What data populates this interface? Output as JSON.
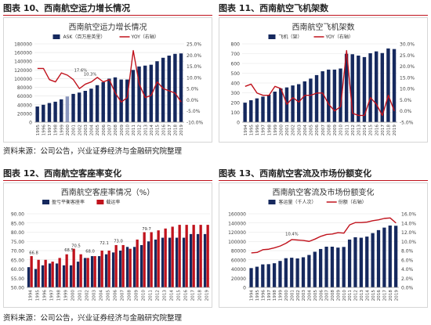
{
  "source_note": "资料来源：公司公告，兴业证券经济与金融研究院整理",
  "colors": {
    "bar": "#16295e",
    "line": "#c0121c",
    "bar_red": "#c0121c",
    "rule": "#c0121c"
  },
  "panels": {
    "p10": {
      "figure_label": "图表 10、西南航空运力增长情况"
    },
    "p11": {
      "figure_label": "图表 11、西南航空飞机架数"
    },
    "p12": {
      "figure_label": "图表 12、西南航空客座率变化"
    },
    "p13": {
      "figure_label": "图表 13、西南航空客流及市场份额变化"
    }
  },
  "chart_data": [
    {
      "type": "bar",
      "title": "西南航空运力增长情况",
      "categories": [
        "1995",
        "1996",
        "1997",
        "1998",
        "1999",
        "2000",
        "2001",
        "2002",
        "2003",
        "2004",
        "2005",
        "2006",
        "2007",
        "2008",
        "2009",
        "2010",
        "2011",
        "2012",
        "2013",
        "2014",
        "2015",
        "2016",
        "2017",
        "2018",
        "2019"
      ],
      "series": [
        {
          "name": "ASK（百万座英里）",
          "kind": "bar",
          "axis": "left",
          "values": [
            36000,
            40000,
            44000,
            47000,
            52500,
            59000,
            65000,
            68000,
            72000,
            77000,
            85000,
            92000,
            100000,
            103000,
            98000,
            98000,
            120000,
            128000,
            130000,
            132000,
            140000,
            148000,
            153000,
            157000,
            158000
          ]
        },
        {
          "name": "YOY（右轴）",
          "kind": "line",
          "axis": "right",
          "values": [
            14,
            14,
            9,
            8,
            12,
            11,
            9,
            5,
            7,
            8,
            10,
            8,
            9,
            3,
            -1,
            1,
            22,
            7,
            1,
            2,
            8,
            5,
            4,
            3,
            -1
          ]
        }
      ],
      "ylim": [
        0,
        180000
      ],
      "yticks": [
        "0",
        "20000",
        "40000",
        "60000",
        "80000",
        "100000",
        "120000",
        "140000",
        "160000",
        "180000"
      ],
      "y2lim": [
        -10,
        25
      ],
      "y2ticks": [
        "-10.0%",
        "-5.0%",
        "0.0%",
        "5.0%",
        "10.0%",
        "15.0%",
        "20.0%",
        "25.0%"
      ],
      "legend_position": "top-right",
      "highlight_bar": 5,
      "annotations": [
        {
          "text": "17.6%",
          "x_index": 7.2,
          "y2": 12.5
        },
        {
          "text": "10.3%",
          "x_index": 8.8,
          "y2": 10.8
        }
      ]
    },
    {
      "type": "bar",
      "title": "西南航空飞机架数",
      "categories": [
        "1994",
        "1995",
        "1996",
        "1997",
        "1998",
        "1999",
        "2000",
        "2001",
        "2002",
        "2003",
        "2004",
        "2005",
        "2006",
        "2007",
        "2008",
        "2009",
        "2010",
        "2011",
        "2012",
        "2013",
        "2014",
        "2015",
        "2016",
        "2017",
        "2018",
        "2019"
      ],
      "series": [
        {
          "name": "飞机（架）",
          "kind": "bar",
          "axis": "left",
          "values": [
            199,
            224,
            243,
            261,
            280,
            312,
            344,
            355,
            375,
            388,
            417,
            445,
            481,
            520,
            537,
            537,
            548,
            698,
            694,
            680,
            665,
            704,
            723,
            706,
            753,
            747
          ]
        },
        {
          "name": "YOY（右轴）",
          "kind": "line",
          "axis": "right",
          "values": [
            11,
            12,
            8,
            7,
            7,
            11,
            10,
            3,
            6,
            4,
            7,
            7,
            8,
            8,
            3,
            0,
            2,
            27,
            -1,
            -2,
            -2,
            6,
            3,
            -2,
            7,
            0
          ]
        }
      ],
      "ylim": [
        0,
        800
      ],
      "yticks": [
        "0",
        "100",
        "200",
        "300",
        "400",
        "500",
        "600",
        "700",
        "800"
      ],
      "y2lim": [
        -5,
        30
      ],
      "y2ticks": [
        "-5.0%",
        "0.0%",
        "5.0%",
        "10.0%",
        "15.0%",
        "20.0%",
        "25.0%",
        "30.0%"
      ],
      "legend_position": "top-right"
    },
    {
      "type": "bar",
      "title": "西南航空客座率情况（%）",
      "categories": [
        "1994",
        "1995",
        "1996",
        "1997",
        "1998",
        "1999",
        "2000",
        "2001",
        "2002",
        "2003",
        "2004",
        "2005",
        "2006",
        "2007",
        "2008",
        "2009",
        "2010",
        "2011",
        "2012",
        "2013",
        "2014",
        "2015",
        "2016",
        "2017",
        "2018",
        "2019"
      ],
      "series": [
        {
          "name": "盈亏平衡客座率",
          "kind": "bar",
          "color_key": "bar",
          "values": [
            61,
            60,
            62,
            63,
            63,
            62,
            62,
            64,
            66,
            67,
            67,
            68,
            69,
            70,
            72,
            72,
            73,
            75,
            76,
            77,
            77,
            77,
            77,
            79,
            79,
            79
          ]
        },
        {
          "name": "载运率",
          "kind": "bar",
          "color_key": "bar_red",
          "values": [
            67,
            65,
            65,
            64,
            66,
            68,
            71,
            68,
            66,
            67,
            70,
            70,
            73,
            73,
            71,
            76,
            80,
            80,
            81,
            82,
            83,
            84,
            84,
            84,
            84,
            84
          ]
        }
      ],
      "ylim": [
        50,
        90
      ],
      "yticks": [
        "50.00",
        "55.00",
        "60.00",
        "65.00",
        "70.00",
        "75.00",
        "80.00",
        "85.00",
        "90.00"
      ],
      "legend_position": "top-left",
      "annotations": [
        {
          "text": "66.8",
          "x_index": 0.5,
          "y": 68
        },
        {
          "text": "68.5",
          "x_index": 5.5,
          "y": 69.5
        },
        {
          "text": "70.5",
          "x_index": 6.5,
          "y": 72
        },
        {
          "text": "68.0",
          "x_index": 8.5,
          "y": 69
        },
        {
          "text": "72.1",
          "x_index": 10.5,
          "y": 73.5
        },
        {
          "text": "73.0",
          "x_index": 12.5,
          "y": 74.5
        },
        {
          "text": "79.7",
          "x_index": 16.5,
          "y": 81
        }
      ]
    },
    {
      "type": "bar",
      "title": "西南航空客流及市场份额变化",
      "categories": [
        "1994",
        "1995",
        "1996",
        "1997",
        "1998",
        "1999",
        "2000",
        "2001",
        "2002",
        "2003",
        "2004",
        "2005",
        "2006",
        "2007",
        "2008",
        "2009",
        "2010",
        "2011",
        "2012",
        "2013",
        "2014",
        "2015",
        "2016",
        "2017",
        "2018",
        "2019"
      ],
      "series": [
        {
          "name": "客运量（千人次）",
          "kind": "bar",
          "axis": "left",
          "values": [
            42000,
            45000,
            50000,
            50500,
            52500,
            57500,
            63500,
            64500,
            63000,
            65500,
            70500,
            77500,
            83500,
            88500,
            88500,
            86500,
            88000,
            104000,
            109000,
            108000,
            110500,
            118000,
            124500,
            130000,
            134500,
            134000
          ]
        },
        {
          "name": "份额（右轴）",
          "kind": "line",
          "axis": "right",
          "values": [
            7.5,
            7.6,
            8.2,
            8.3,
            8.6,
            9.0,
            9.6,
            10.4,
            10.3,
            10.2,
            10.0,
            10.5,
            11.1,
            11.5,
            11.6,
            11.9,
            11.8,
            13.6,
            14.1,
            14.1,
            14.2,
            14.5,
            14.7,
            15.0,
            15.1,
            14.0
          ]
        }
      ],
      "ylim": [
        0,
        160000
      ],
      "yticks": [
        "0",
        "20000",
        "40000",
        "60000",
        "80000",
        "100000",
        "120000",
        "140000",
        "160000"
      ],
      "y2lim": [
        0,
        16
      ],
      "y2ticks": [
        "0.0%",
        "2.0%",
        "4.0%",
        "6.0%",
        "8.0%",
        "10.0%",
        "12.0%",
        "14.0%",
        "16.0%"
      ],
      "legend_position": "top-right",
      "annotations": [
        {
          "text": "10.4%",
          "x_index": 7,
          "y2": 11.3
        }
      ]
    }
  ]
}
